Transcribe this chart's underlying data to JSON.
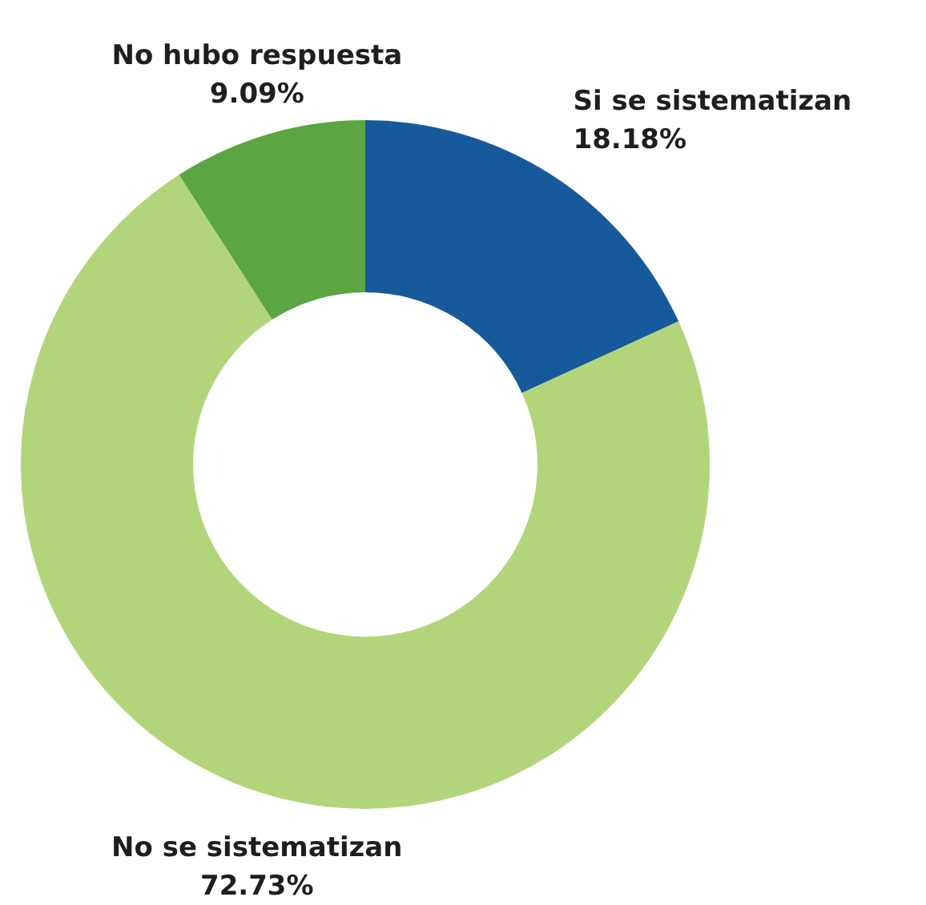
{
  "chart_data": {
    "type": "donut",
    "categories": [
      "Si se sistematizan",
      "No se sistematizan",
      "No hubo respuesta"
    ],
    "values": [
      18.18,
      72.73,
      9.09
    ],
    "value_labels": [
      "18.18%",
      "72.73%",
      "9.09%"
    ],
    "colors": [
      "#175a9b",
      "#b2d57b",
      "#5ca543"
    ],
    "legend": false
  }
}
